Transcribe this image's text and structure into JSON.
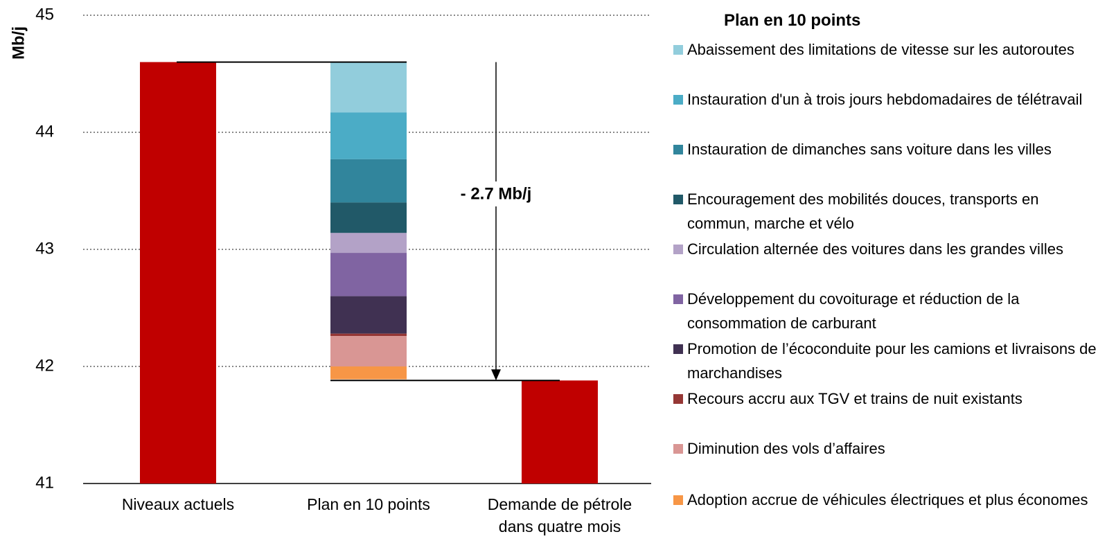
{
  "chart_data": {
    "type": "waterfall",
    "y_label": "Mb/j",
    "categories": [
      "Niveaux actuels",
      "Plan en 10 points",
      "Demande de pétrole dans quatre mois"
    ],
    "values": [
      44.6,
      null,
      41.88
    ],
    "color": "#c00000",
    "legend_title": "Plan en 10 points",
    "series": [
      {
        "name": "Abaissement des limitations de vitesse sur les autoroutes",
        "color": "#92cddc",
        "value": 0.43
      },
      {
        "name": "Instauration d'un à trois jours hebdomadaires de télétravail",
        "color": "#4bacc6",
        "value": 0.4
      },
      {
        "name": "Instauration de dimanches sans voiture dans les villes",
        "color": "#31859c",
        "value": 0.37
      },
      {
        "name": "Encouragement des mobilités douces, transports en commun, marche et vélo",
        "color": "#215968",
        "value": 0.26
      },
      {
        "name": "Circulation alternée des voitures dans les grandes villes",
        "color": "#b3a2c7",
        "value": 0.17
      },
      {
        "name": "Développement du covoiturage et réduction de la consommation de carburant",
        "color": "#8064a2",
        "value": 0.37
      },
      {
        "name": "Promotion de l’écoconduite pour les camions et livraisons de marchandises",
        "color": "#403152",
        "value": 0.32
      },
      {
        "name": "Recours accru aux TGV et trains de nuit existants",
        "color": "#953735",
        "value": 0.02
      },
      {
        "name": "Diminution des vols d’affaires",
        "color": "#d99694",
        "value": 0.26
      },
      {
        "name": "Adoption accrue de véhicules électriques et plus économes",
        "color": "#f79646",
        "value": 0.11
      }
    ],
    "annotation": "- 2.7 Mb/j",
    "ylim": [
      41,
      45
    ],
    "yticks": [
      41,
      42,
      43,
      44,
      45
    ],
    "grid": true
  }
}
